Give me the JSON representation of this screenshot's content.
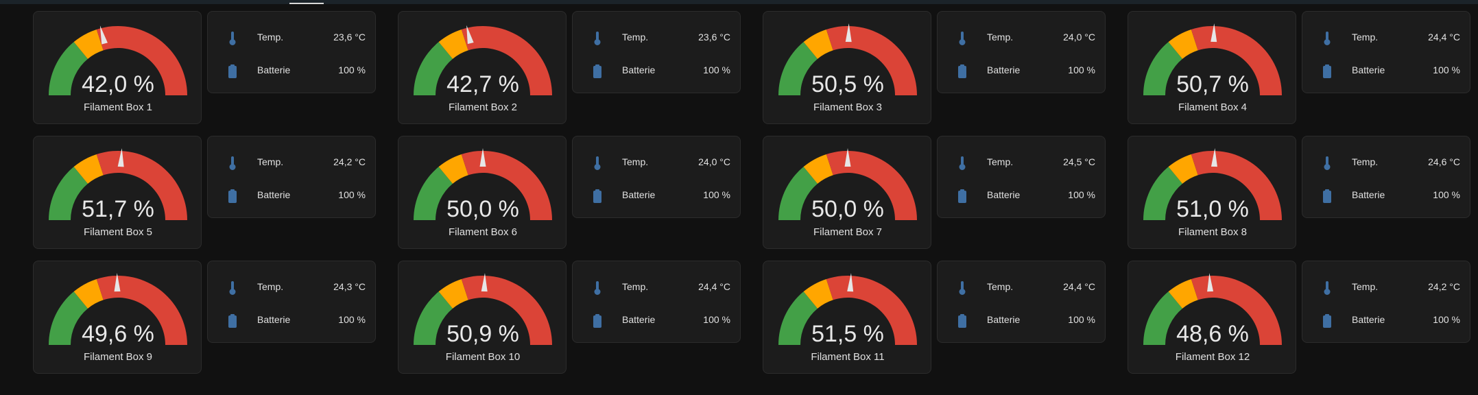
{
  "colors": {
    "background": "#111111",
    "card": "#1c1c1c",
    "gauge_green": "#43a047",
    "gauge_yellow": "#ffa600",
    "gauge_red": "#db4437",
    "needle": "#e6e6e6",
    "icon": "#3f6fa3"
  },
  "gauge": {
    "min": 0,
    "max": 100,
    "segments": [
      {
        "from": 0,
        "to": 28,
        "color": "green"
      },
      {
        "from": 28,
        "to": 40,
        "color": "yellow"
      },
      {
        "from": 40,
        "to": 100,
        "color": "red"
      }
    ]
  },
  "boxes": [
    {
      "value": 42.0,
      "value_text": "42,0 %",
      "name": "Filament Box 1",
      "temp_label": "Temp.",
      "temp": "23,6 °C",
      "battery_label": "Batterie",
      "battery": "100 %"
    },
    {
      "value": 42.7,
      "value_text": "42,7 %",
      "name": "Filament Box 2",
      "temp_label": "Temp.",
      "temp": "23,6 °C",
      "battery_label": "Batterie",
      "battery": "100 %"
    },
    {
      "value": 50.5,
      "value_text": "50,5 %",
      "name": "Filament Box 3",
      "temp_label": "Temp.",
      "temp": "24,0 °C",
      "battery_label": "Batterie",
      "battery": "100 %"
    },
    {
      "value": 50.7,
      "value_text": "50,7 %",
      "name": "Filament Box 4",
      "temp_label": "Temp.",
      "temp": "24,4 °C",
      "battery_label": "Batterie",
      "battery": "100 %"
    },
    {
      "value": 51.7,
      "value_text": "51,7 %",
      "name": "Filament Box 5",
      "temp_label": "Temp.",
      "temp": "24,2 °C",
      "battery_label": "Batterie",
      "battery": "100 %"
    },
    {
      "value": 50.0,
      "value_text": "50,0 %",
      "name": "Filament Box 6",
      "temp_label": "Temp.",
      "temp": "24,0 °C",
      "battery_label": "Batterie",
      "battery": "100 %"
    },
    {
      "value": 50.0,
      "value_text": "50,0 %",
      "name": "Filament Box 7",
      "temp_label": "Temp.",
      "temp": "24,5 °C",
      "battery_label": "Batterie",
      "battery": "100 %"
    },
    {
      "value": 51.0,
      "value_text": "51,0 %",
      "name": "Filament Box 8",
      "temp_label": "Temp.",
      "temp": "24,6 °C",
      "battery_label": "Batterie",
      "battery": "100 %"
    },
    {
      "value": 49.6,
      "value_text": "49,6 %",
      "name": "Filament Box 9",
      "temp_label": "Temp.",
      "temp": "24,3 °C",
      "battery_label": "Batterie",
      "battery": "100 %"
    },
    {
      "value": 50.9,
      "value_text": "50,9 %",
      "name": "Filament Box 10",
      "temp_label": "Temp.",
      "temp": "24,4 °C",
      "battery_label": "Batterie",
      "battery": "100 %"
    },
    {
      "value": 51.5,
      "value_text": "51,5 %",
      "name": "Filament Box 11",
      "temp_label": "Temp.",
      "temp": "24,4 °C",
      "battery_label": "Batterie",
      "battery": "100 %"
    },
    {
      "value": 48.6,
      "value_text": "48,6 %",
      "name": "Filament Box 12",
      "temp_label": "Temp.",
      "temp": "24,2 °C",
      "battery_label": "Batterie",
      "battery": "100 %"
    }
  ]
}
